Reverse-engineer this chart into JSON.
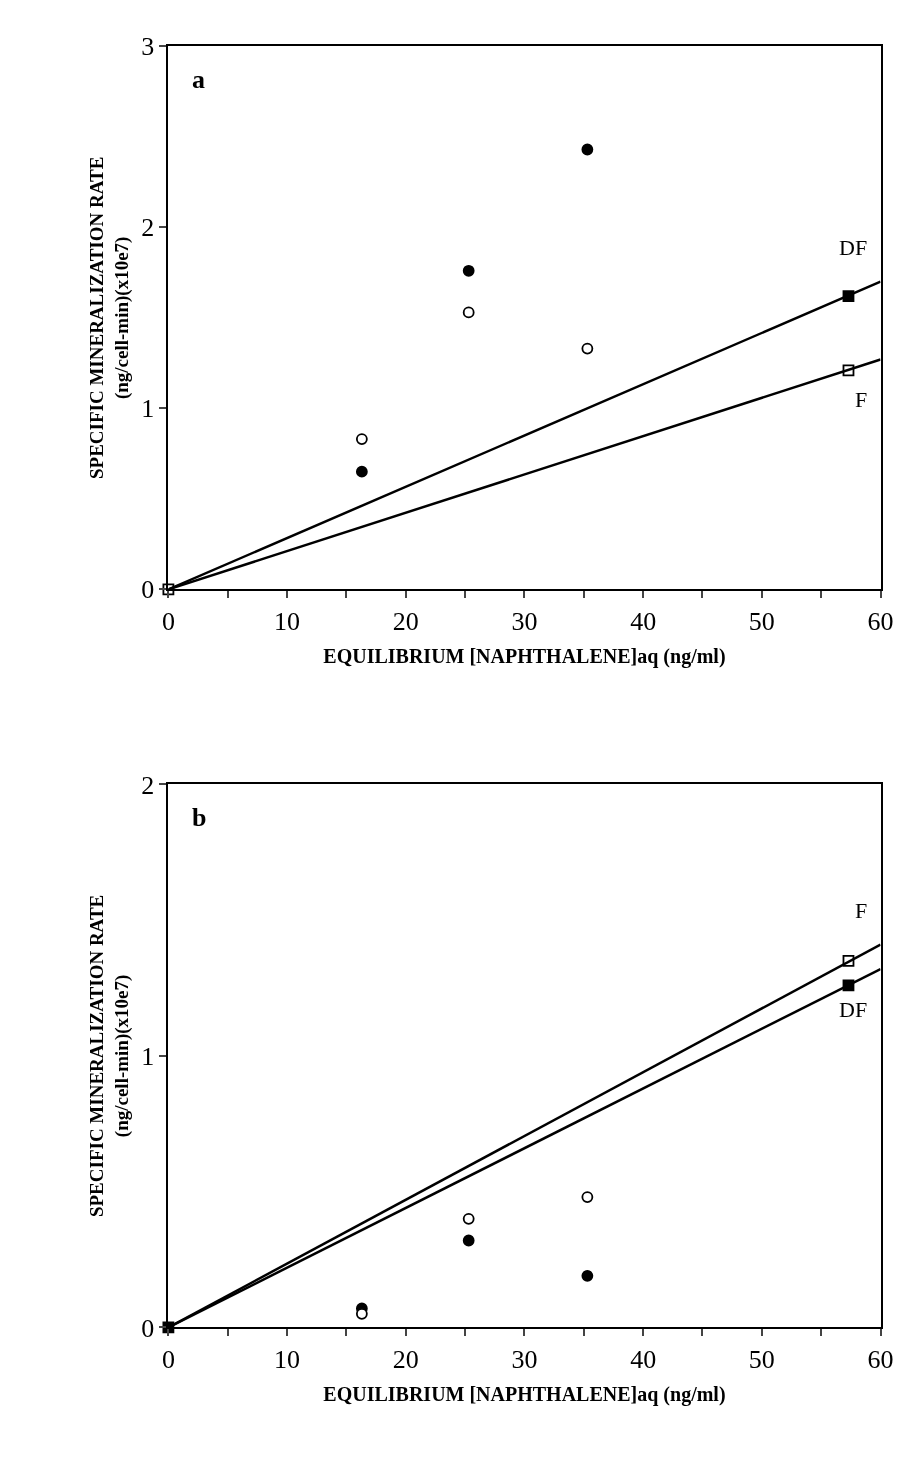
{
  "chart_data": [
    {
      "type": "scatter",
      "xlabel": "EQUILIBRIUM [NAPHTHALENE]aq (ng/ml)",
      "ylabel": "SPECIFIC MINERALIZATION RATE\n(ng/cell-min)(x10e7)",
      "annotations": [
        "a"
      ],
      "xlim": [
        0,
        60
      ],
      "xticks": [
        0,
        {
          "value": 5,
          "label": null
        },
        10,
        {
          "value": 15,
          "label": null
        },
        20,
        {
          "value": 25,
          "label": null
        },
        30,
        {
          "value": 35,
          "label": null
        },
        40,
        {
          "value": 45,
          "label": null
        },
        50,
        {
          "value": 55,
          "label": null
        },
        60
      ],
      "ylim": [
        0,
        3
      ],
      "yticks": [
        0,
        1,
        2,
        3
      ],
      "series": [
        {
          "marker": "circle",
          "color": "#000000",
          "x": [
            16.3,
            25.3,
            35.3
          ],
          "values": [
            0.65,
            1.76,
            2.43
          ]
        },
        {
          "marker": "circle",
          "color": "#ffffff",
          "x": [
            16.3,
            25.3,
            35.3
          ],
          "values": [
            0.83,
            1.53,
            1.33
          ]
        },
        {
          "marker": "square",
          "color": "#000000",
          "x": [
            57.3
          ],
          "values": [
            1.62
          ]
        },
        {
          "marker": "square",
          "color": "#ffffff",
          "x": [
            0,
            57.3
          ],
          "values": [
            0,
            1.21
          ]
        },
        {
          "type": "line",
          "name": "DF",
          "marker": "none",
          "color": "#000000",
          "x": [
            0,
            60
          ],
          "values": [
            0,
            1.7
          ]
        },
        {
          "type": "line",
          "name": "F",
          "marker": "none",
          "color": "#000000",
          "x": [
            0,
            60
          ],
          "values": [
            0,
            1.27
          ]
        }
      ]
    },
    {
      "type": "scatter",
      "xlabel": "EQUILIBRIUM [NAPHTHALENE]aq (ng/ml)",
      "ylabel": "SPECIFIC MINERALIZATION RATE\n(ng/cell-min)(x10e7)",
      "annotations": [
        "b"
      ],
      "xlim": [
        0,
        60
      ],
      "xticks": [
        0,
        {
          "value": 5,
          "label": null
        },
        10,
        {
          "value": 15,
          "label": null
        },
        20,
        {
          "value": 25,
          "label": null
        },
        30,
        {
          "value": 35,
          "label": null
        },
        40,
        {
          "value": 45,
          "label": null
        },
        50,
        {
          "value": 55,
          "label": null
        },
        60
      ],
      "ylim": [
        0,
        2
      ],
      "yticks": [
        0,
        1,
        2
      ],
      "series": [
        {
          "marker": "circle",
          "color": "#000000",
          "x": [
            16.3,
            25.3,
            35.3
          ],
          "values": [
            0.07,
            0.32,
            0.19
          ]
        },
        {
          "marker": "circle",
          "color": "#ffffff",
          "x": [
            16.3,
            25.3,
            35.3
          ],
          "values": [
            0.05,
            0.4,
            0.48
          ]
        },
        {
          "marker": "square",
          "color": "#000000",
          "x": [
            0,
            57.3
          ],
          "values": [
            0,
            1.26
          ]
        },
        {
          "marker": "square",
          "color": "#ffffff",
          "x": [
            57.3
          ],
          "values": [
            1.35
          ]
        },
        {
          "type": "line",
          "name": "F",
          "marker": "none",
          "color": "#000000",
          "x": [
            0,
            60
          ],
          "values": [
            0,
            1.41
          ]
        },
        {
          "type": "line",
          "name": "DF",
          "marker": "none",
          "color": "#000000",
          "x": [
            0,
            60
          ],
          "values": [
            0,
            1.32
          ]
        }
      ]
    }
  ]
}
